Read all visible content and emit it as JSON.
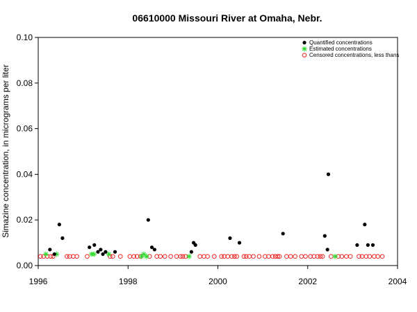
{
  "chart_data": {
    "type": "scatter",
    "title": "06610000 Missouri River at Omaha, Nebr.",
    "xlabel": "",
    "ylabel": "Simazine concentration, in micrograms per liter",
    "xlim": [
      1996,
      2004
    ],
    "ylim": [
      0,
      0.1
    ],
    "x_ticks": [
      "1996",
      "1998",
      "2000",
      "2002",
      "2004"
    ],
    "y_ticks": [
      "0.00",
      "0.02",
      "0.04",
      "0.06",
      "0.08",
      "0.10"
    ],
    "grid": false,
    "legend_position": "top-right",
    "series": [
      {
        "name": "Quantified concentrations",
        "marker": "filled-circle",
        "color": "#000000",
        "points": [
          [
            1996.26,
            0.007
          ],
          [
            1996.36,
            0.005
          ],
          [
            1996.47,
            0.018
          ],
          [
            1996.54,
            0.012
          ],
          [
            1997.14,
            0.008
          ],
          [
            1997.25,
            0.009
          ],
          [
            1997.33,
            0.006
          ],
          [
            1997.39,
            0.007
          ],
          [
            1997.44,
            0.005
          ],
          [
            1997.5,
            0.006
          ],
          [
            1997.71,
            0.006
          ],
          [
            1998.45,
            0.02
          ],
          [
            1998.53,
            0.008
          ],
          [
            1998.59,
            0.007
          ],
          [
            1999.41,
            0.006
          ],
          [
            1999.46,
            0.01
          ],
          [
            1999.5,
            0.009
          ],
          [
            2000.27,
            0.012
          ],
          [
            2000.48,
            0.01
          ],
          [
            2001.45,
            0.014
          ],
          [
            2002.38,
            0.013
          ],
          [
            2002.44,
            0.007
          ],
          [
            2002.46,
            0.04
          ],
          [
            2003.1,
            0.009
          ],
          [
            2003.27,
            0.018
          ],
          [
            2003.34,
            0.009
          ],
          [
            2003.45,
            0.009
          ]
        ]
      },
      {
        "name": "Estimated concentrations",
        "marker": "asterisk",
        "color": "#33dd33",
        "points": [
          [
            1996.17,
            0.005
          ],
          [
            1996.41,
            0.005
          ],
          [
            1997.19,
            0.005
          ],
          [
            1997.24,
            0.005
          ],
          [
            1997.57,
            0.005
          ],
          [
            1998.3,
            0.004
          ],
          [
            1998.35,
            0.005
          ],
          [
            1998.41,
            0.004
          ],
          [
            1999.36,
            0.004
          ],
          [
            2002.61,
            0.004
          ]
        ]
      },
      {
        "name": "Censored concentrations, less thans",
        "marker": "open-circle",
        "color": "#ee2222",
        "points": [
          [
            1996.05,
            0.004
          ],
          [
            1996.12,
            0.004
          ],
          [
            1996.2,
            0.004
          ],
          [
            1996.28,
            0.004
          ],
          [
            1996.33,
            0.004
          ],
          [
            1996.64,
            0.004
          ],
          [
            1996.7,
            0.004
          ],
          [
            1996.78,
            0.004
          ],
          [
            1996.86,
            0.004
          ],
          [
            1997.09,
            0.004
          ],
          [
            1997.6,
            0.004
          ],
          [
            1997.66,
            0.004
          ],
          [
            1997.83,
            0.004
          ],
          [
            1998.04,
            0.004
          ],
          [
            1998.13,
            0.004
          ],
          [
            1998.2,
            0.004
          ],
          [
            1998.28,
            0.004
          ],
          [
            1998.48,
            0.004
          ],
          [
            1998.64,
            0.004
          ],
          [
            1998.72,
            0.004
          ],
          [
            1998.82,
            0.004
          ],
          [
            1998.95,
            0.004
          ],
          [
            1999.08,
            0.004
          ],
          [
            1999.17,
            0.004
          ],
          [
            1999.22,
            0.004
          ],
          [
            1999.28,
            0.004
          ],
          [
            1999.6,
            0.004
          ],
          [
            1999.69,
            0.004
          ],
          [
            1999.77,
            0.004
          ],
          [
            1999.92,
            0.004
          ],
          [
            2000.08,
            0.004
          ],
          [
            2000.14,
            0.004
          ],
          [
            2000.22,
            0.004
          ],
          [
            2000.31,
            0.004
          ],
          [
            2000.37,
            0.004
          ],
          [
            2000.42,
            0.004
          ],
          [
            2000.58,
            0.004
          ],
          [
            2000.63,
            0.004
          ],
          [
            2000.7,
            0.004
          ],
          [
            2000.79,
            0.004
          ],
          [
            2000.92,
            0.004
          ],
          [
            2001.05,
            0.004
          ],
          [
            2001.13,
            0.004
          ],
          [
            2001.22,
            0.004
          ],
          [
            2001.28,
            0.004
          ],
          [
            2001.33,
            0.004
          ],
          [
            2001.37,
            0.004
          ],
          [
            2001.53,
            0.004
          ],
          [
            2001.62,
            0.004
          ],
          [
            2001.72,
            0.004
          ],
          [
            2001.86,
            0.004
          ],
          [
            2001.95,
            0.004
          ],
          [
            2002.06,
            0.004
          ],
          [
            2002.14,
            0.004
          ],
          [
            2002.22,
            0.004
          ],
          [
            2002.28,
            0.004
          ],
          [
            2002.33,
            0.004
          ],
          [
            2002.52,
            0.004
          ],
          [
            2002.68,
            0.004
          ],
          [
            2002.76,
            0.004
          ],
          [
            2002.86,
            0.004
          ],
          [
            2002.95,
            0.004
          ],
          [
            2003.14,
            0.004
          ],
          [
            2003.21,
            0.004
          ],
          [
            2003.3,
            0.004
          ],
          [
            2003.38,
            0.004
          ],
          [
            2003.48,
            0.004
          ],
          [
            2003.56,
            0.004
          ],
          [
            2003.66,
            0.004
          ]
        ]
      }
    ]
  }
}
